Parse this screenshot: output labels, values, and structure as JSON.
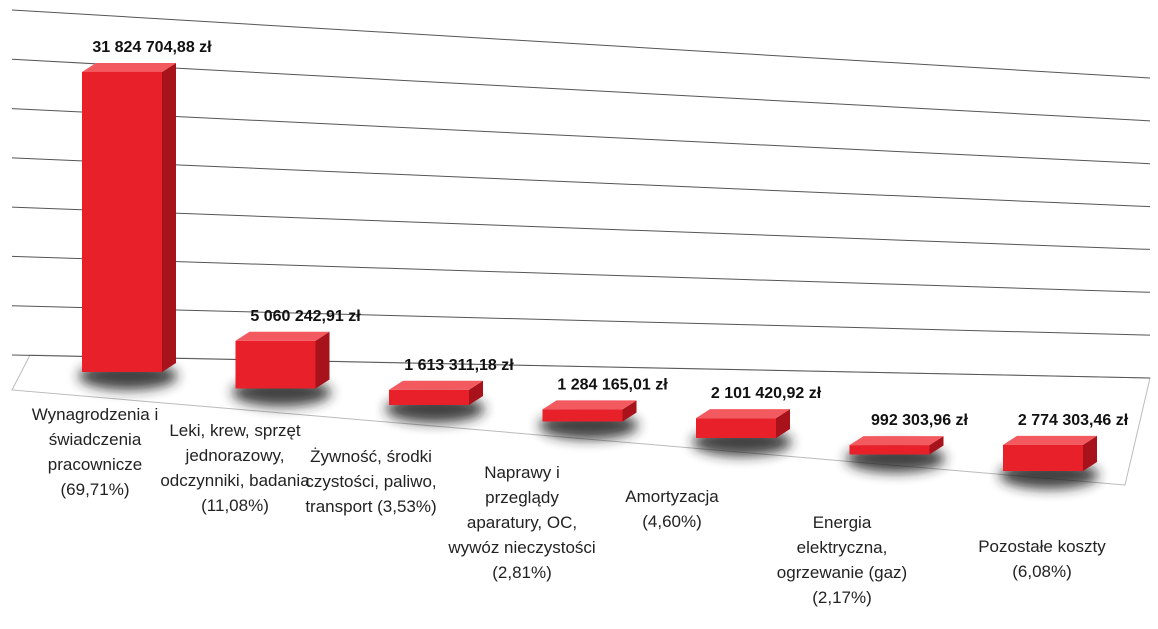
{
  "chart_data": {
    "type": "bar3d",
    "categories": [
      "Wynagrodzenia i świadczenia pracownicze (69,71%)",
      "Leki, krew, sprzęt jednorazowy, odczynniki, badania (11,08%)",
      "Żywność, środki czystości, paliwo, transport (3,53%)",
      "Naprawy i przeglądy aparatury, OC, wywóz nieczystości (2,81%)",
      "Amortyzacja (4,60%)",
      "Energia elektryczna, ogrzewanie (gaz) (2,17%)",
      "Pozostałe koszty (6,08%)"
    ],
    "values": [
      31824704.88,
      5060242.91,
      1613311.18,
      1284165.01,
      2101420.92,
      992303.96,
      2774303.46
    ],
    "value_labels": [
      "31 824 704,88 zł",
      "5 060 242,91 zł",
      "1 613 311,18 zł",
      "1 284 165,01 zł",
      "2 101 420,92 zł",
      "992 303,96 zł",
      "2 774 303,46 zł"
    ],
    "color": "#e8202a",
    "ylim": [
      0,
      35000000
    ],
    "yticks": [
      0,
      5000000,
      10000000,
      15000000,
      20000000,
      25000000,
      30000000,
      35000000
    ],
    "grid": true
  }
}
